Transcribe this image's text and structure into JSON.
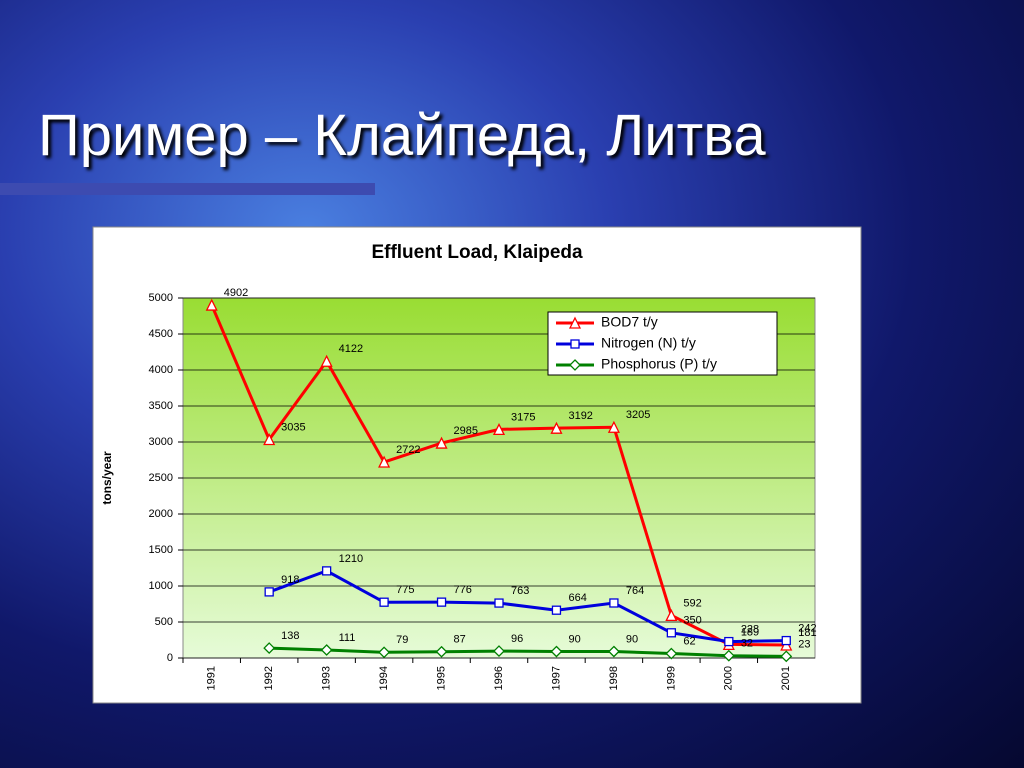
{
  "slide_title": "Пример – Клайпеда, Литва",
  "chart_data": {
    "type": "line",
    "title": "Effluent Load, Klaipeda",
    "y_label": "tons/year",
    "categories": [
      "1991",
      "1992",
      "1993",
      "1994",
      "1995",
      "1996",
      "1997",
      "1998",
      "1999",
      "2000",
      "2001"
    ],
    "series": [
      {
        "name": "BOD7 t/y",
        "color": "#ff0000",
        "marker": "triangle",
        "values": [
          4902,
          3035,
          4122,
          2722,
          2985,
          3175,
          3192,
          3205,
          592,
          189,
          181
        ]
      },
      {
        "name": "Nitrogen (N) t/y",
        "color": "#0000dd",
        "marker": "square",
        "values": [
          null,
          918,
          1210,
          775,
          776,
          763,
          664,
          764,
          350,
          228,
          242
        ]
      },
      {
        "name": "Phosphorus (P) t/y",
        "color": "#008000",
        "marker": "diamond",
        "values": [
          null,
          138,
          111,
          79,
          87,
          96,
          90,
          90,
          62,
          32,
          23
        ]
      }
    ],
    "ylim": [
      0,
      5000
    ],
    "yticks": [
      0,
      500,
      1000,
      1500,
      2000,
      2500,
      3000,
      3500,
      4000,
      4500,
      5000
    ],
    "grid": true,
    "legend": "top-right"
  }
}
